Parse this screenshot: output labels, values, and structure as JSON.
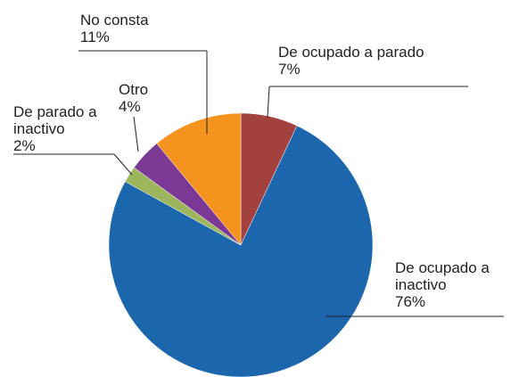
{
  "chart_data": {
    "type": "pie",
    "categories": [
      "De ocupado a parado",
      "De ocupado a inactivo",
      "De parado a inactivo",
      "Otro",
      "No consta"
    ],
    "values": [
      7,
      76,
      2,
      4,
      11
    ],
    "value_labels": [
      "7%",
      "76%",
      "2%",
      "4%",
      "11%"
    ],
    "colors": [
      "#a3413f",
      "#1b66ad",
      "#9db55c",
      "#7b3995",
      "#f5931f"
    ]
  }
}
